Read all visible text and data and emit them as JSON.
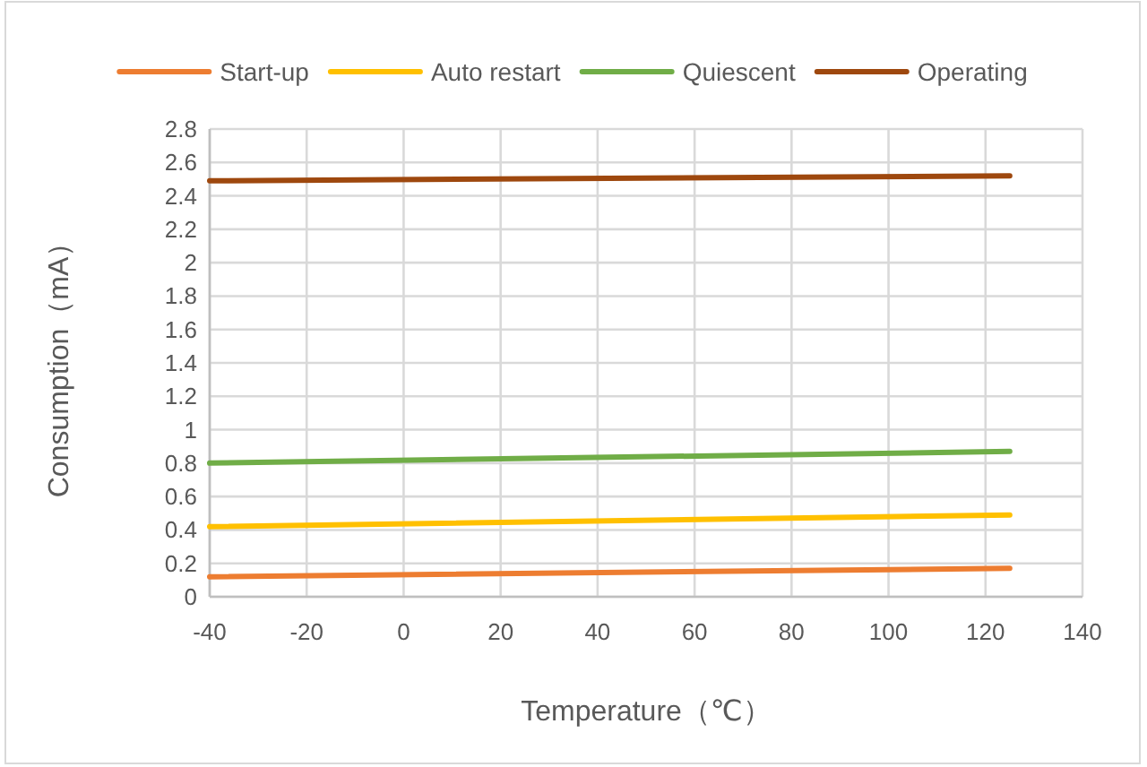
{
  "chart_data": {
    "type": "line",
    "xlabel": "Temperature（℃）",
    "ylabel": "Consumption（mA）",
    "x": [
      -40,
      125
    ],
    "series": [
      {
        "name": "Start-up",
        "color": "#ed7d31",
        "values": [
          0.12,
          0.17
        ]
      },
      {
        "name": "Auto restart",
        "color": "#ffc000",
        "values": [
          0.42,
          0.49
        ]
      },
      {
        "name": "Quiescent",
        "color": "#70ad47",
        "values": [
          0.8,
          0.87
        ]
      },
      {
        "name": "Operating",
        "color": "#9e480e",
        "values": [
          2.49,
          2.52
        ]
      }
    ],
    "xlim": [
      -40,
      140
    ],
    "xticks": [
      -40,
      -20,
      0,
      20,
      40,
      60,
      80,
      100,
      120,
      140
    ],
    "ylim": [
      0,
      2.8
    ],
    "yticks": [
      0,
      0.2,
      0.4,
      0.6,
      0.8,
      1,
      1.2,
      1.4,
      1.6,
      1.8,
      2,
      2.2,
      2.4,
      2.6,
      2.8
    ],
    "grid": true,
    "legend": "top"
  }
}
